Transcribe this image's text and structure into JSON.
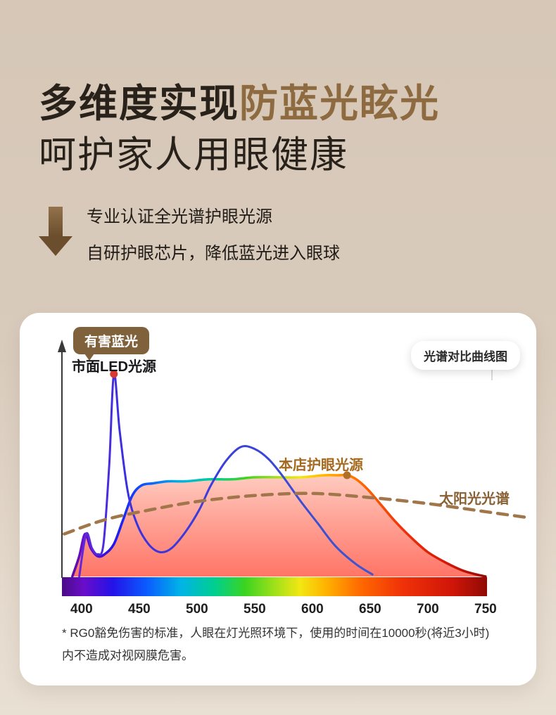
{
  "colors": {
    "background_top": "#d6c7b7",
    "background_bottom": "#e9e0d4",
    "title_dark": "#29221b",
    "accent_brown": "#8d6a3f",
    "card_bg": "#ffffff",
    "badge_bg": "#7f613c",
    "store_label": "#a5691e",
    "sun_label": "#8a6134",
    "sun_line": "#a0764a",
    "marker_led": "#d63a30",
    "marker_store": "#b06f24"
  },
  "header": {
    "title_dark": "多维度实现",
    "title_accent": "防蓝光眩光",
    "title_line2": "呵护家人用眼健康",
    "subtitle_line1": "专业认证全光谱护眼光源",
    "subtitle_line2": "自研护眼芯片，降低蓝光进入眼球"
  },
  "chart_card": {
    "badge_harmful": "有害蓝光",
    "label_led": "市面LED光源",
    "pill_compare": "光谱对比曲线图",
    "label_store": "本店护眼光源",
    "label_sun": "太阳光光谱",
    "footnote_line1": "* RG0豁免伤害的标准，人眼在灯光照环境下，使用的时间在10000秒(将近3小时)",
    "footnote_line2": "内不造成对视网膜危害。"
  },
  "chart_data": {
    "type": "line",
    "title": "光谱对比曲线图",
    "xlabel": "",
    "ylabel": "",
    "x_ticks": [
      400,
      450,
      500,
      550,
      600,
      650,
      700,
      750
    ],
    "x_range": [
      383,
      790
    ],
    "y_range": [
      0,
      1
    ],
    "grid": false,
    "legend_position": "inline-labels",
    "series": [
      {
        "name": "市面LED光源",
        "style": "line",
        "color": "led-gradient",
        "x": [
          398,
          404,
          409,
          414,
          419,
          424,
          428,
          433,
          440,
          448,
          458,
          468,
          478,
          490,
          502,
          512,
          525,
          538,
          550,
          562,
          575,
          590,
          605,
          620,
          638,
          652
        ],
        "y": [
          0.0,
          0.21,
          0.14,
          0.11,
          0.16,
          0.55,
          1.0,
          0.72,
          0.42,
          0.26,
          0.16,
          0.12,
          0.14,
          0.22,
          0.33,
          0.45,
          0.57,
          0.64,
          0.63,
          0.58,
          0.49,
          0.37,
          0.26,
          0.15,
          0.06,
          0.01
        ]
      },
      {
        "name": "本店护眼光源",
        "style": "area",
        "stroke": "spectrum-gradient",
        "fill": "pink-gradient",
        "x": [
          392,
          398,
          403,
          408,
          414,
          420,
          428,
          436,
          444,
          452,
          462,
          475,
          490,
          510,
          530,
          550,
          570,
          590,
          610,
          622,
          630,
          638,
          648,
          660,
          672,
          686,
          700,
          715,
          730,
          742,
          750
        ],
        "y": [
          0.0,
          0.1,
          0.21,
          0.14,
          0.1,
          0.11,
          0.16,
          0.28,
          0.4,
          0.45,
          0.46,
          0.47,
          0.47,
          0.48,
          0.48,
          0.49,
          0.49,
          0.49,
          0.5,
          0.5,
          0.5,
          0.48,
          0.43,
          0.35,
          0.27,
          0.19,
          0.12,
          0.07,
          0.03,
          0.01,
          0.0
        ]
      },
      {
        "name": "太阳光光谱",
        "style": "dashed",
        "color": "#a0764a",
        "x": [
          385,
          420,
          460,
          500,
          550,
          600,
          650,
          700,
          750,
          788
        ],
        "y": [
          0.21,
          0.28,
          0.33,
          0.37,
          0.4,
          0.41,
          0.39,
          0.36,
          0.32,
          0.29
        ]
      }
    ],
    "markers": [
      {
        "series": "市面LED光源",
        "x": 428,
        "y": 1.0,
        "color": "#d63a30"
      },
      {
        "series": "本店护眼光源",
        "x": 630,
        "y": 0.5,
        "color": "#b06f24"
      }
    ],
    "spectrum_bar": {
      "from_nm": 383,
      "to_nm": 752
    }
  }
}
